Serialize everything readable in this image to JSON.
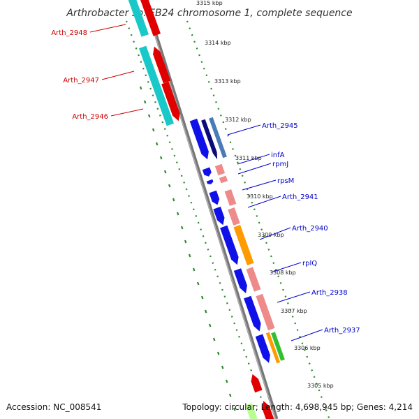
{
  "title": "Arthrobacter sp. FB24 chromosome 1, complete sequence",
  "footer": {
    "accession": "Accession: NC_008541",
    "topology": "Topology: circular; Length: 4,698,945 bp; Genes: 4,214"
  },
  "colors": {
    "backbone": "#8a8a8a",
    "tick": "#2d8a2d",
    "label_red": "#cc0000",
    "label_blue": "#0000cc",
    "cyan": "#19c8c8",
    "red": "#e00000",
    "blue": "#1010e8",
    "navy": "#0a0a78",
    "steel": "#4a7ab8",
    "pink": "#ee8a8a",
    "orange": "#ff9a00",
    "green": "#30c030",
    "lightgreen": "#b8ff90"
  },
  "kbp_marks": [
    {
      "id": "k3315",
      "label": "3315 kbp"
    },
    {
      "id": "k3314",
      "label": "3314 kbp"
    },
    {
      "id": "k3313",
      "label": "3313 kbp"
    },
    {
      "id": "k3312",
      "label": "3312 kbp"
    },
    {
      "id": "k3311",
      "label": "3311 kbp"
    },
    {
      "id": "k3310",
      "label": "3310 kbp"
    },
    {
      "id": "k3309",
      "label": "3309 kbp"
    },
    {
      "id": "k3308",
      "label": "3308 kbp"
    },
    {
      "id": "k3307",
      "label": "3307 kbp"
    },
    {
      "id": "k3306",
      "label": "3306 kbp"
    },
    {
      "id": "k3305",
      "label": "3305 kbp"
    }
  ],
  "gene_labels": [
    {
      "id": "arth-2948",
      "text": "Arth_2948",
      "side": "left"
    },
    {
      "id": "arth-2947",
      "text": "Arth_2947",
      "side": "left"
    },
    {
      "id": "arth-2946",
      "text": "Arth_2946",
      "side": "left"
    },
    {
      "id": "arth-2945",
      "text": "Arth_2945",
      "side": "right"
    },
    {
      "id": "infa",
      "text": "infA",
      "side": "right"
    },
    {
      "id": "rpmj",
      "text": "rpmJ",
      "side": "right"
    },
    {
      "id": "rpsm",
      "text": "rpsM",
      "side": "right"
    },
    {
      "id": "arth-2941",
      "text": "Arth_2941",
      "side": "right"
    },
    {
      "id": "arth-2940",
      "text": "Arth_2940",
      "side": "right"
    },
    {
      "id": "rplq",
      "text": "rplQ",
      "side": "right"
    },
    {
      "id": "arth-2938",
      "text": "Arth_2938",
      "side": "right"
    },
    {
      "id": "arth-2937",
      "text": "Arth_2937",
      "side": "right"
    }
  ]
}
